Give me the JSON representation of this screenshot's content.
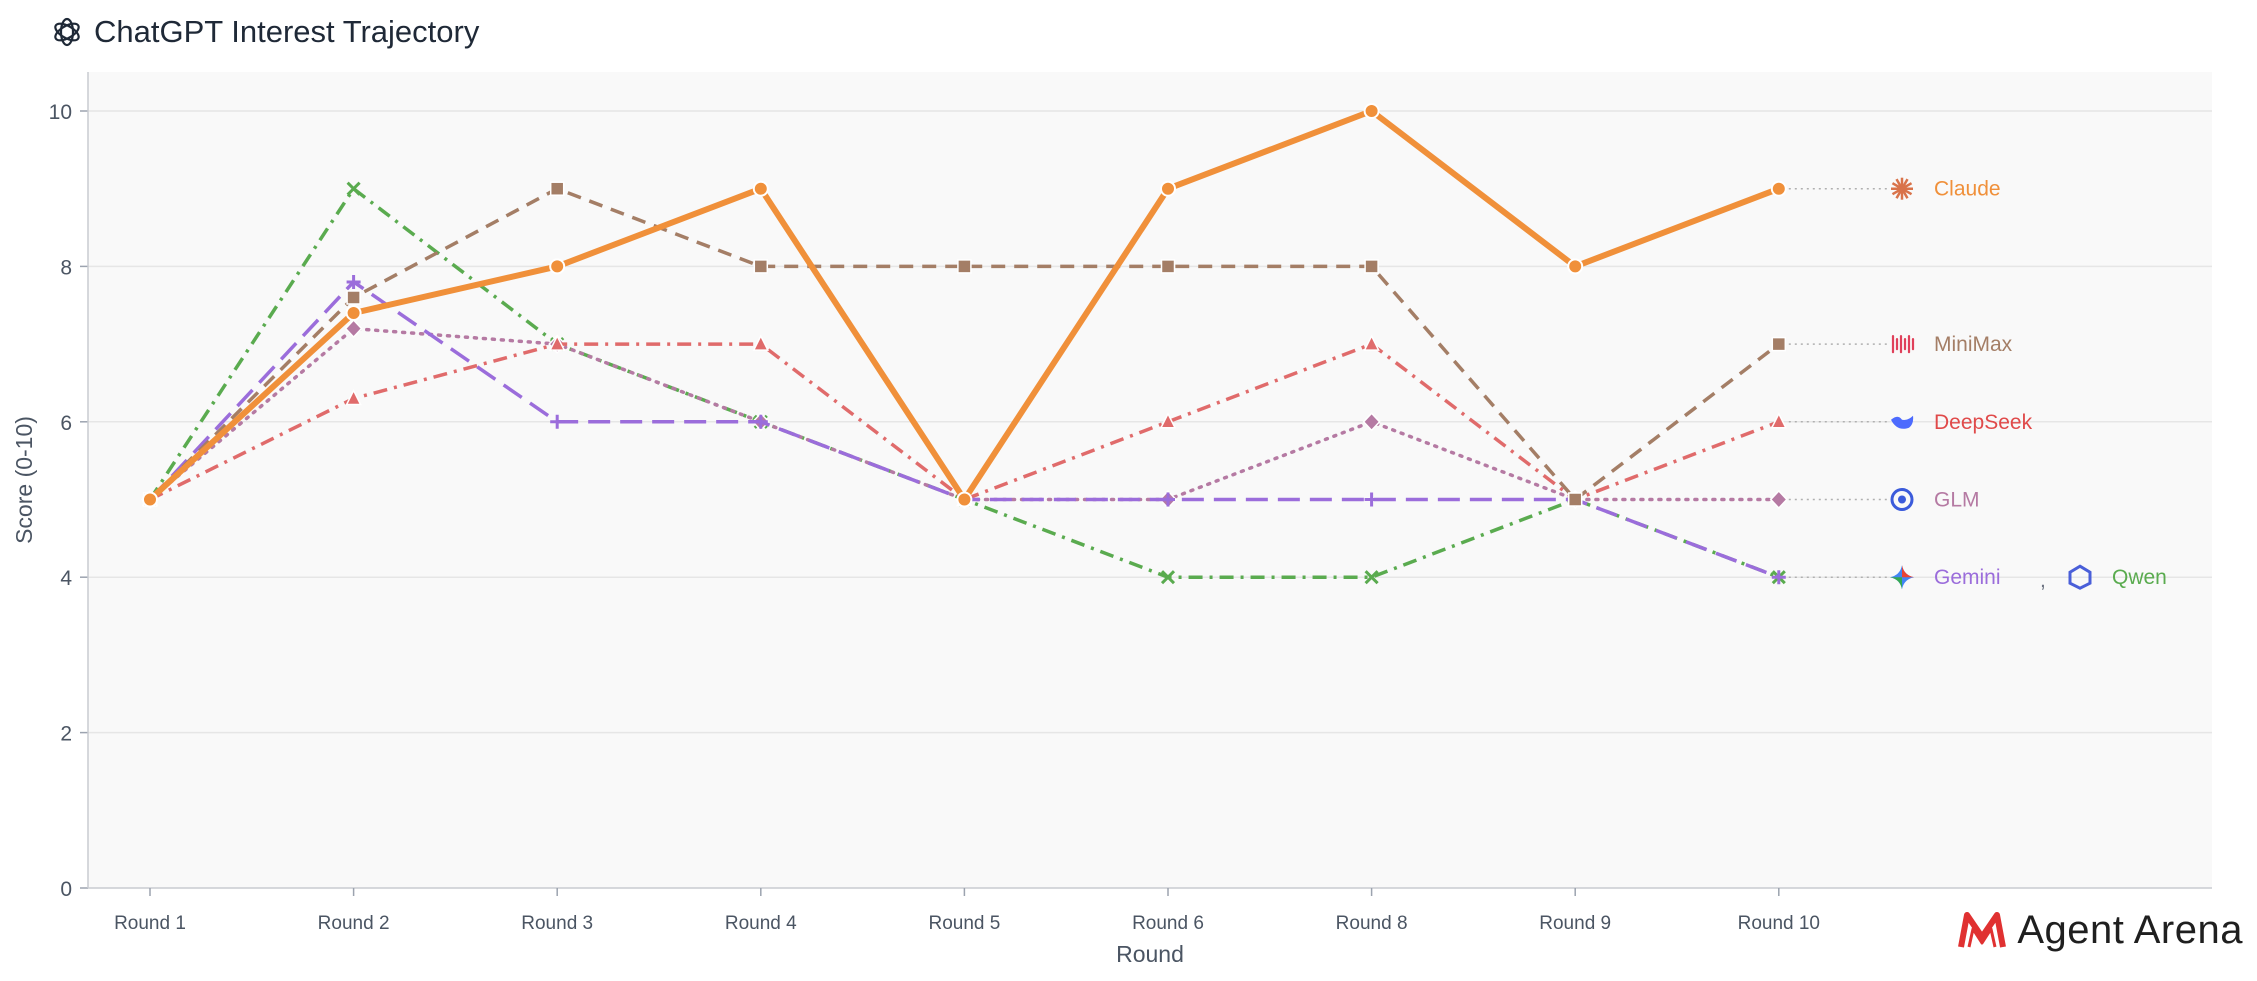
{
  "header": {
    "title": "ChatGPT Interest Trajectory",
    "icon": "openai-logo-icon"
  },
  "brand": {
    "name": "Agent Arena",
    "icon": "agent-arena-logo-icon",
    "color": "#e03131"
  },
  "chart_data": {
    "type": "line",
    "title": "ChatGPT Interest Trajectory",
    "xlabel": "Round",
    "ylabel": "Score (0-10)",
    "categories": [
      "Round 1",
      "Round 2",
      "Round 3",
      "Round 4",
      "Round 5",
      "Round 6",
      "Round 8",
      "Round 9",
      "Round 10"
    ],
    "ylim": [
      0,
      10
    ],
    "yticks": [
      0,
      2,
      4,
      6,
      8,
      10
    ],
    "grid": true,
    "legend": "right, end-of-line labels",
    "series": [
      {
        "name": "Qwen",
        "color": "#5aab4f",
        "marker": "x",
        "dash": "dashdot",
        "values": [
          5,
          9,
          7,
          6,
          5,
          4,
          4,
          5,
          4
        ]
      },
      {
        "name": "GLM",
        "color": "#b57aa3",
        "marker": "diamond",
        "dash": "dotted",
        "values": [
          5,
          7.2,
          7,
          6,
          5,
          5,
          6,
          5,
          5
        ]
      },
      {
        "name": "DeepSeek",
        "color": "#e06b6b",
        "marker": "triangle",
        "dash": "dashdot",
        "values": [
          5,
          6.3,
          7,
          7,
          5,
          6,
          7,
          5,
          6
        ]
      },
      {
        "name": "Gemini",
        "color": "#9b6ddb",
        "marker": "plus",
        "dash": "longdash",
        "values": [
          5,
          7.8,
          6,
          6,
          5,
          5,
          5,
          5,
          4
        ]
      },
      {
        "name": "MiniMax",
        "color": "#a47e66",
        "marker": "square",
        "dash": "dashed",
        "values": [
          5,
          7.6,
          9,
          8,
          8,
          8,
          8,
          5,
          7
        ]
      },
      {
        "name": "Claude",
        "color": "#f0903a",
        "marker": "circle",
        "dash": "solid",
        "values": [
          5,
          7.4,
          8,
          9,
          5,
          9,
          10,
          8,
          9
        ]
      }
    ],
    "legend_labels": [
      {
        "name": "Claude",
        "color": "#f0903a",
        "icon": "claude-icon",
        "y": 9
      },
      {
        "name": "MiniMax",
        "color": "#a47e66",
        "icon": "minimax-icon",
        "y": 7
      },
      {
        "name": "DeepSeek",
        "color": "#e04a4a",
        "icon": "deepseek-icon",
        "y": 6
      },
      {
        "name": "GLM",
        "color": "#b57aa3",
        "icon": "glm-icon",
        "y": 5
      },
      {
        "name": "Gemini",
        "color": "#9b6ddb",
        "icon": "gemini-icon",
        "y": 4
      },
      {
        "name": "Qwen",
        "color": "#5aab4f",
        "icon": "qwen-icon",
        "y": 4
      }
    ],
    "legend_separator": ","
  }
}
